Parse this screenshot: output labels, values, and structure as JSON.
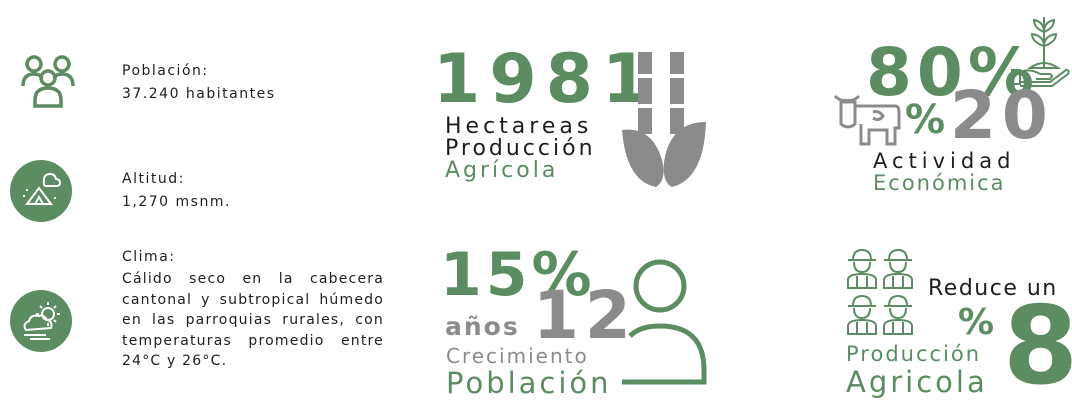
{
  "info": [
    {
      "label": "Población:",
      "value": "37.240 habitantes"
    },
    {
      "label": "Altitud:",
      "value": "1,270 msnm."
    },
    {
      "label": "Clima:",
      "value": "Cálido seco en la cabecera cantonal y subtropical húmedo en las parroquias rurales, con temperaturas promedio entre 24°C y 26°C."
    }
  ],
  "hectareas": {
    "number": "1981",
    "line1": "Hectareas",
    "line2": "Producción",
    "line3": "Agrícola"
  },
  "crecimiento": {
    "percent": "15%",
    "unit": "años",
    "number": "12",
    "line1": "Crecimiento",
    "line2": "Población"
  },
  "actividad": {
    "percent1": "80%",
    "percent2_sign": "%",
    "percent2_number": "20",
    "line1": "Actividad",
    "line2": "Económica"
  },
  "reduccion": {
    "text": "Reduce un",
    "sign": "%",
    "number": "8",
    "line1": "Producción",
    "line2": "Agricola"
  }
}
